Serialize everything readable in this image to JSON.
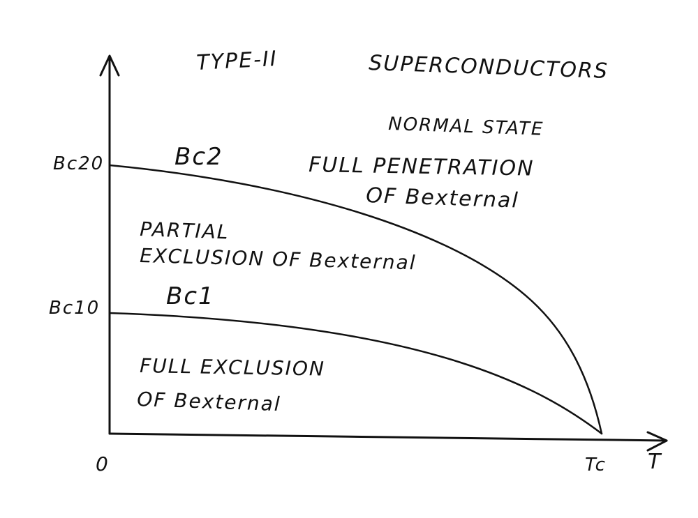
{
  "title": {
    "line1": "TYPE-II",
    "line2": "SUPERCONDUCTORS"
  },
  "axes": {
    "origin_label": "0",
    "x_label": "T",
    "tc_label": "Tc",
    "bc20_label": "Bc20",
    "bc10_label": "Bc10"
  },
  "curves": {
    "bc2_label": "Bc2",
    "bc1_label": "Bc1"
  },
  "regions": {
    "normal_title": "NORMAL STATE",
    "normal_line1": "FULL PENETRATION",
    "normal_line2": "OF Bexternal",
    "partial_line1": "PARTIAL",
    "partial_line2": "EXCLUSION OF Bexternal",
    "full_line1": "FULL EXCLUSION",
    "full_line2": "OF Bexternal"
  },
  "colors": {
    "ink": "#111111",
    "paper": "#ffffff"
  }
}
